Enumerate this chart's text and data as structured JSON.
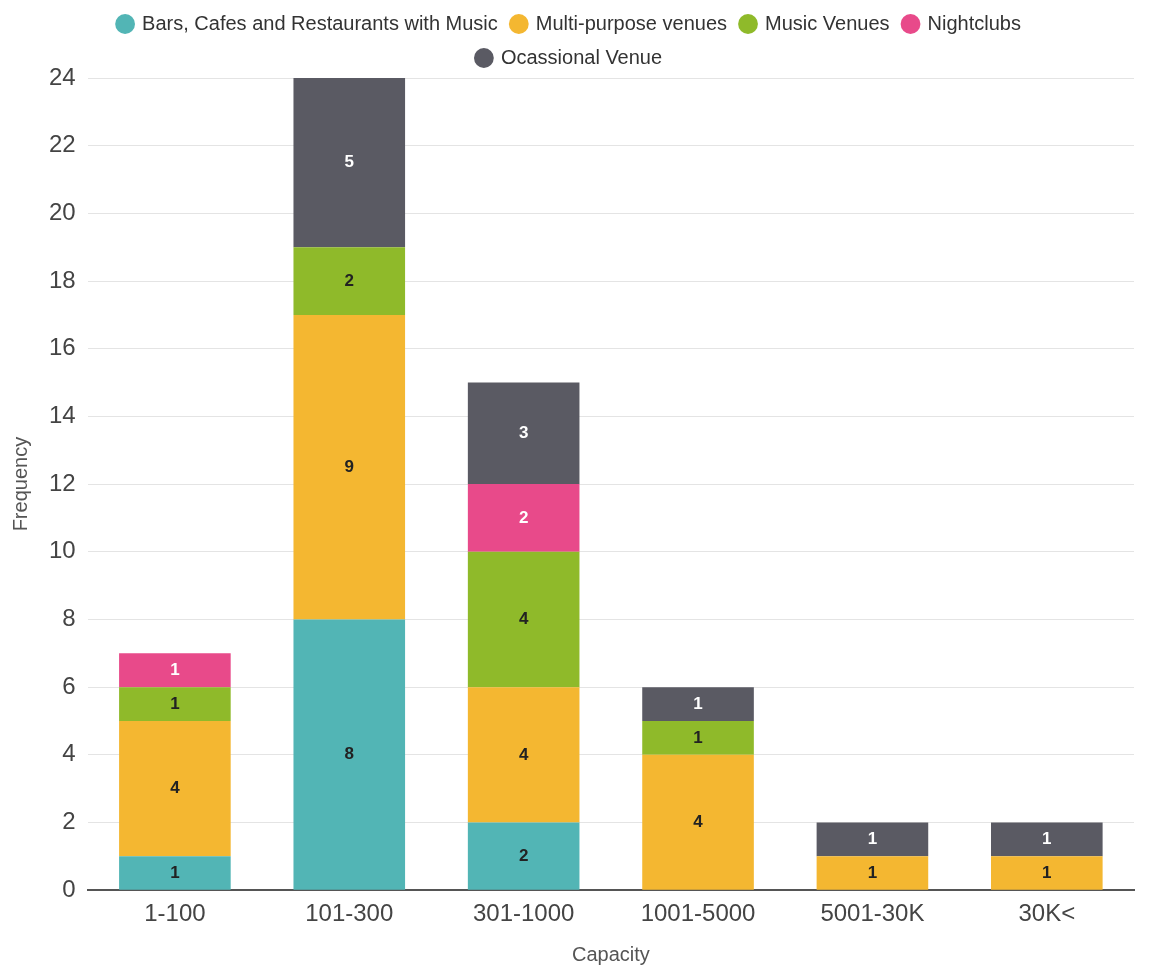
{
  "chart_data": {
    "type": "bar",
    "stacked": true,
    "xlabel": "Capacity",
    "ylabel": "Frequency",
    "categories": [
      "1-100",
      "101-300",
      "301-1000",
      "1001-5000",
      "5001-30K",
      "30K<"
    ],
    "series": [
      {
        "name": "Bars, Cafes and Restaurants with Music",
        "color": "#52b5b5",
        "values": [
          1,
          8,
          2,
          null,
          null,
          null
        ]
      },
      {
        "name": "Multi-purpose venues",
        "color": "#f4b731",
        "values": [
          4,
          9,
          4,
          4,
          1,
          1
        ]
      },
      {
        "name": "Music Venues",
        "color": "#8fba2a",
        "values": [
          1,
          2,
          4,
          1,
          null,
          null
        ]
      },
      {
        "name": "Nightclubs",
        "color": "#e84a8a",
        "values": [
          1,
          null,
          2,
          null,
          null,
          null
        ]
      },
      {
        "name": "Ocassional Venue",
        "color": "#5a5a63",
        "values": [
          null,
          5,
          3,
          1,
          1,
          1
        ]
      }
    ],
    "ylim": [
      0,
      24
    ],
    "yticks": [
      0,
      2,
      4,
      6,
      8,
      10,
      12,
      14,
      16,
      18,
      20,
      22,
      24
    ],
    "grid": "y",
    "legend": "top",
    "data_labels": true
  }
}
